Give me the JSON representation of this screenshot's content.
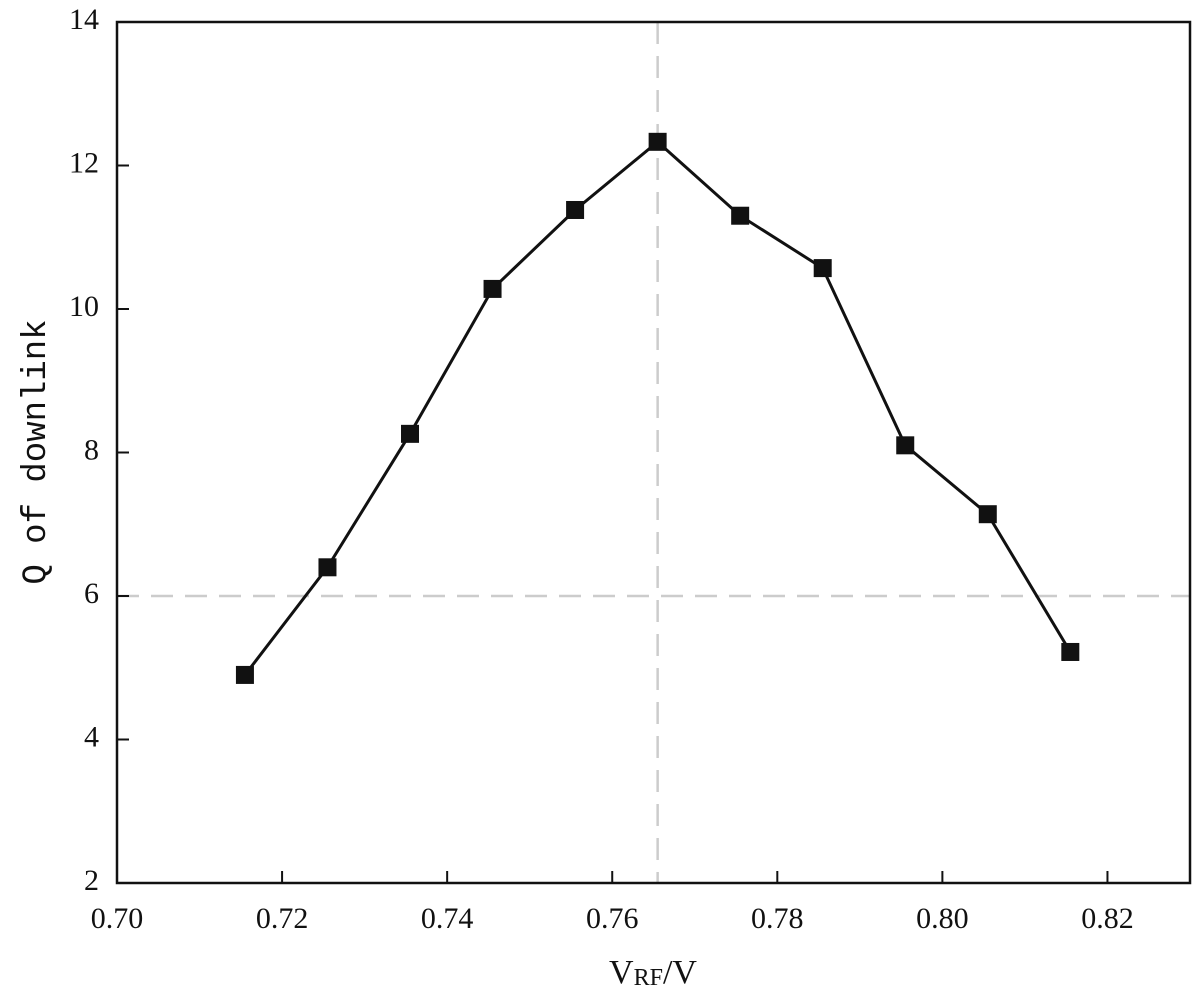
{
  "chart_data": {
    "type": "line",
    "x_label": [
      "V",
      "RF",
      "/V"
    ],
    "y_label": "Q of downlink",
    "x": [
      0.7155,
      0.7255,
      0.7355,
      0.7455,
      0.7555,
      0.7655,
      0.7755,
      0.7855,
      0.7955,
      0.8055,
      0.8155
    ],
    "series": [
      {
        "color": "#111111",
        "values": [
          4.9,
          6.4,
          8.26,
          10.28,
          11.38,
          12.33,
          11.3,
          10.57,
          8.1,
          7.14,
          5.22
        ]
      }
    ],
    "xlim": [
      0.7,
      0.83
    ],
    "ylim": [
      2,
      14
    ],
    "xticks": [
      {
        "value": 0.7,
        "label": "0.70"
      },
      {
        "value": 0.72,
        "label": "0.72"
      },
      {
        "value": 0.74,
        "label": "0.74"
      },
      {
        "value": 0.76,
        "label": "0.76"
      },
      {
        "value": 0.78,
        "label": "0.78"
      },
      {
        "value": 0.8,
        "label": "0.80"
      },
      {
        "value": 0.82,
        "label": "0.82"
      }
    ],
    "yticks": [
      2,
      4,
      6,
      8,
      10,
      12,
      14
    ],
    "reference_lines": {
      "x": 0.7655,
      "y": 6,
      "color": "#cccccc"
    },
    "marker": "square"
  }
}
